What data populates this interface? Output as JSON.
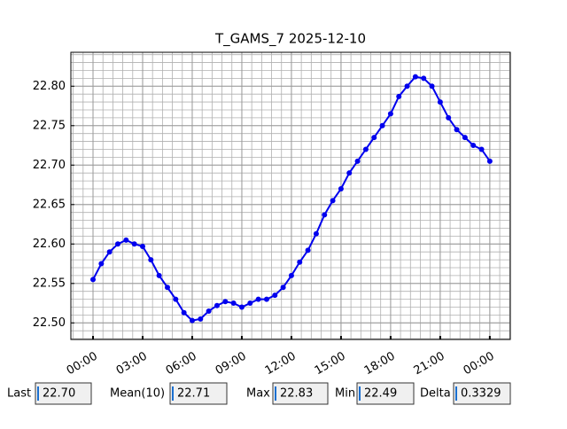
{
  "chart_data": {
    "type": "line",
    "title": "T_GAMS_7 2025-12-10",
    "x": [
      0.0,
      0.5,
      1.0,
      1.5,
      2.0,
      2.5,
      3.0,
      3.5,
      4.0,
      4.5,
      5.0,
      5.5,
      6.0,
      6.5,
      7.0,
      7.5,
      8.0,
      8.5,
      9.0,
      9.5,
      10.0,
      10.5,
      11.0,
      11.5,
      12.0,
      12.5,
      13.0,
      13.5,
      14.0,
      14.5,
      15.0,
      15.5,
      16.0,
      16.5,
      17.0,
      17.5,
      18.0,
      18.5,
      19.0,
      19.5,
      20.0,
      20.5,
      21.0,
      21.5,
      22.0,
      22.5,
      23.0,
      23.5,
      24.0
    ],
    "series": [
      {
        "name": "T_GAMS_7",
        "color": "#0000ee",
        "values": [
          22.555,
          22.575,
          22.59,
          22.6,
          22.605,
          22.6,
          22.597,
          22.58,
          22.56,
          22.545,
          22.53,
          22.513,
          22.503,
          22.505,
          22.515,
          22.522,
          22.527,
          22.525,
          22.52,
          22.525,
          22.53,
          22.53,
          22.535,
          22.545,
          22.56,
          22.577,
          22.592,
          22.613,
          22.637,
          22.655,
          22.67,
          22.69,
          22.705,
          22.72,
          22.735,
          22.75,
          22.765,
          22.787,
          22.8,
          22.812,
          22.81,
          22.8,
          22.78,
          22.76,
          22.745,
          22.735,
          22.725,
          22.72,
          22.705
        ]
      }
    ],
    "xlim": [
      -1.34,
      25.24
    ],
    "ylim": [
      22.479,
      22.843
    ],
    "xticks": [
      {
        "value": 0,
        "label": "00:00"
      },
      {
        "value": 3,
        "label": "03:00"
      },
      {
        "value": 6,
        "label": "06:00"
      },
      {
        "value": 9,
        "label": "09:00"
      },
      {
        "value": 12,
        "label": "12:00"
      },
      {
        "value": 15,
        "label": "15:00"
      },
      {
        "value": 18,
        "label": "18:00"
      },
      {
        "value": 21,
        "label": "21:00"
      },
      {
        "value": 24,
        "label": "00:00"
      }
    ],
    "yticks": [
      {
        "value": 22.5,
        "label": "22.50"
      },
      {
        "value": 22.55,
        "label": "22.55"
      },
      {
        "value": 22.6,
        "label": "22.60"
      },
      {
        "value": 22.65,
        "label": "22.65"
      },
      {
        "value": 22.7,
        "label": "22.70"
      },
      {
        "value": 22.75,
        "label": "22.75"
      },
      {
        "value": 22.8,
        "label": "22.80"
      }
    ],
    "grid": true,
    "minor_divisions": 5
  },
  "status_bar": {
    "fields": [
      {
        "label": "Last",
        "value": "22.70"
      },
      {
        "label": "Mean(10)",
        "value": "22.71"
      },
      {
        "label": "Max",
        "value": "22.83"
      },
      {
        "label": "Min",
        "value": "22.49"
      },
      {
        "label": "Delta",
        "value": "0.3329"
      }
    ]
  }
}
